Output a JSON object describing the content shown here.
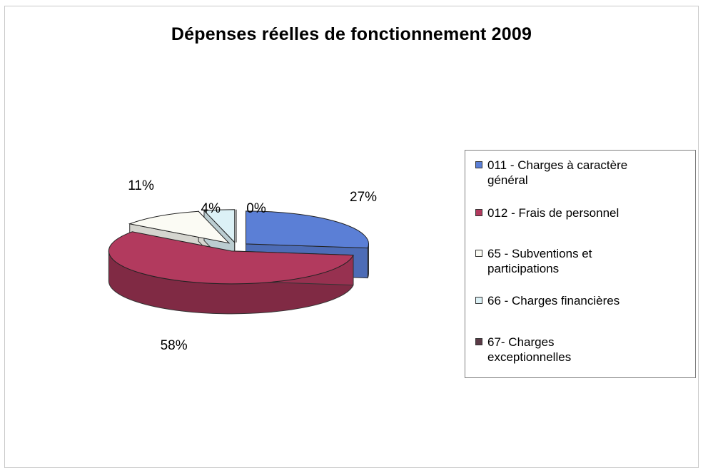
{
  "chart_data": {
    "type": "pie",
    "title": "Dépenses réelles de fonctionnement 2009",
    "legend_position": "right",
    "slices": [
      {
        "name": "011 - Charges à caractère général",
        "value": 27,
        "label": "27%",
        "color": "#5b7fd6"
      },
      {
        "name": "012 - Frais de personnel",
        "value": 58,
        "label": "58%",
        "color": "#b23a5e"
      },
      {
        "name": "65 - Subventions et participations",
        "value": 11,
        "label": "11%",
        "color": "#fbfbf4"
      },
      {
        "name": "66 - Charges financières",
        "value": 4,
        "label": "4%",
        "color": "#dcf1f6"
      },
      {
        "name": "67- Charges exceptionnelles",
        "value": 0,
        "label": "0%",
        "color": "#5a3a46"
      }
    ]
  },
  "legend": {
    "items": [
      {
        "line1": "011 - Charges à caractère",
        "line2": "général"
      },
      {
        "line1": "012 - Frais de personnel",
        "line2": ""
      },
      {
        "line1": "65 - Subventions et",
        "line2": "participations"
      },
      {
        "line1": "66 - Charges financières",
        "line2": ""
      },
      {
        "line1": "67- Charges",
        "line2": "exceptionnelles"
      }
    ]
  }
}
